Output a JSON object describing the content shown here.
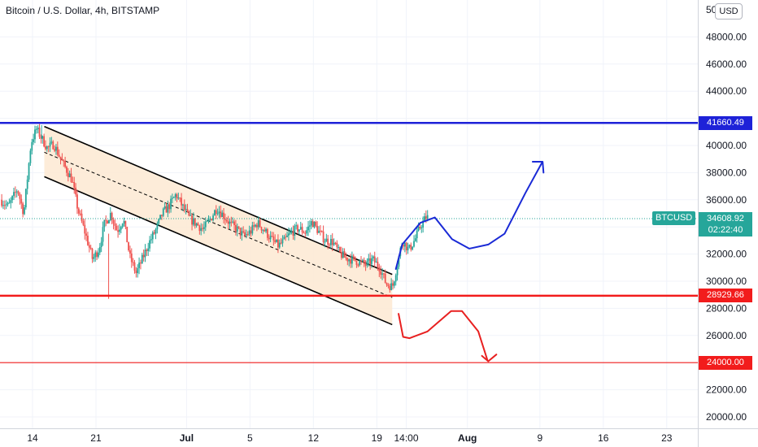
{
  "header": {
    "title": "Bitcoin / U.S. Dollar, 4h, BITSTAMP",
    "currency_button": "USD",
    "top_tick_partial": "50"
  },
  "colors": {
    "up": "#26a69a",
    "down": "#ef5350",
    "resistance": "#1e22d8",
    "support": "#f21c1c",
    "channel_fill": "#fde9d2",
    "sketch_up": "#1a2ad6",
    "sketch_down": "#e82020"
  },
  "price_scale": {
    "labels": [
      "48000.00",
      "46000.00",
      "44000.00",
      "40000.00",
      "38000.00",
      "36000.00",
      "32000.00",
      "30000.00",
      "28000.00",
      "26000.00",
      "22000.00",
      "20000.00"
    ],
    "tick_values": [
      48000,
      46000,
      44000,
      40000,
      38000,
      36000,
      32000,
      30000,
      28000,
      26000,
      22000,
      20000
    ]
  },
  "time_scale": {
    "labels": [
      "14",
      "21",
      "Jul",
      "5",
      "12",
      "19",
      "14:00",
      "Aug",
      "9",
      "16",
      "23"
    ],
    "days": [
      0,
      7,
      17,
      24,
      31,
      38,
      41.25,
      48,
      56,
      63,
      70
    ]
  },
  "levels": [
    {
      "name": "resistance",
      "price": 41660.49,
      "label": "41660.49",
      "color": "#1e22d8"
    },
    {
      "name": "support",
      "price": 28929.66,
      "label": "28929.66",
      "color": "#f21c1c"
    },
    {
      "name": "target",
      "price": 24000.0,
      "label": "24000.00",
      "color": "#f21c1c"
    }
  ],
  "last_price": {
    "symbol": "BTCUSD",
    "price": 34608.92,
    "label": "34608.92",
    "timer": "02:22:40"
  },
  "chart_data": {
    "type": "candlestick",
    "title": "Bitcoin / U.S. Dollar, 4h, BITSTAMP",
    "y_range": [
      19000,
      50500
    ],
    "x_range_days": [
      -3.4,
      74
    ],
    "x_note_days_from": "14",
    "price_path": [
      [
        -3.4,
        36000
      ],
      [
        -2.5,
        35500
      ],
      [
        -1.5,
        36800
      ],
      [
        -0.8,
        35000
      ],
      [
        0,
        40200
      ],
      [
        0.6,
        41200
      ],
      [
        1.2,
        40500
      ],
      [
        1.8,
        39800
      ],
      [
        2.5,
        40100
      ],
      [
        3.5,
        38700
      ],
      [
        4.5,
        37500
      ],
      [
        5.2,
        35200
      ],
      [
        6,
        33500
      ],
      [
        6.8,
        31600
      ],
      [
        7.5,
        32400
      ],
      [
        8.1,
        34200
      ],
      [
        8.8,
        35000
      ],
      [
        9.5,
        33700
      ],
      [
        10.2,
        34600
      ],
      [
        10.9,
        31800
      ],
      [
        11.6,
        30600
      ],
      [
        12.2,
        31500
      ],
      [
        13,
        32800
      ],
      [
        13.8,
        33800
      ],
      [
        14.5,
        35000
      ],
      [
        15.3,
        35600
      ],
      [
        16,
        36400
      ],
      [
        16.8,
        35400
      ],
      [
        17.5,
        34600
      ],
      [
        18.3,
        34200
      ],
      [
        19,
        33800
      ],
      [
        19.8,
        34600
      ],
      [
        20.5,
        35400
      ],
      [
        21.3,
        34800
      ],
      [
        22,
        34200
      ],
      [
        22.8,
        33800
      ],
      [
        23.5,
        33300
      ],
      [
        24.3,
        33700
      ],
      [
        25,
        34300
      ],
      [
        25.7,
        33800
      ],
      [
        26.5,
        33100
      ],
      [
        27.3,
        32600
      ],
      [
        28,
        33000
      ],
      [
        28.7,
        33600
      ],
      [
        29.5,
        33900
      ],
      [
        30.3,
        33600
      ],
      [
        31,
        34400
      ],
      [
        31.8,
        33600
      ],
      [
        32.5,
        33000
      ],
      [
        33.3,
        32900
      ],
      [
        34,
        32100
      ],
      [
        34.7,
        31700
      ],
      [
        35.5,
        31600
      ],
      [
        36.3,
        31400
      ],
      [
        37,
        31200
      ],
      [
        37.7,
        31600
      ],
      [
        38.5,
        31000
      ],
      [
        39.2,
        29800
      ],
      [
        39.9,
        29600
      ],
      [
        40.5,
        31500
      ],
      [
        41,
        33000
      ],
      [
        41.7,
        32300
      ],
      [
        42.4,
        33100
      ],
      [
        43,
        34100
      ],
      [
        43.6,
        34700
      ]
    ],
    "channel": {
      "upper": [
        [
          1.3,
          41400
        ],
        [
          39.7,
          30500
        ]
      ],
      "middle": [
        [
          1.3,
          39500
        ],
        [
          39.7,
          28800
        ]
      ],
      "lower": [
        [
          1.3,
          37700
        ],
        [
          39.7,
          26800
        ]
      ]
    },
    "sketch_up": [
      [
        40.1,
        30900
      ],
      [
        40.8,
        32700
      ],
      [
        42.8,
        34300
      ],
      [
        44.4,
        34700
      ],
      [
        46.3,
        33100
      ],
      [
        48.2,
        32400
      ],
      [
        50.3,
        32700
      ],
      [
        52.1,
        33500
      ],
      [
        54.4,
        36500
      ],
      [
        56.2,
        38700
      ]
    ],
    "sketch_up_arrow": [
      [
        55.2,
        38800
      ],
      [
        56.3,
        38800
      ],
      [
        56.4,
        38000
      ]
    ],
    "sketch_down": [
      [
        40.4,
        27600
      ],
      [
        40.9,
        25900
      ],
      [
        41.6,
        25800
      ],
      [
        43.6,
        26300
      ],
      [
        46.2,
        27800
      ],
      [
        47.4,
        27800
      ],
      [
        49.2,
        26300
      ],
      [
        50.2,
        24200
      ]
    ],
    "sketch_down_arrow": [
      [
        49.6,
        24500
      ],
      [
        50.3,
        24100
      ],
      [
        51.2,
        24600
      ]
    ]
  }
}
